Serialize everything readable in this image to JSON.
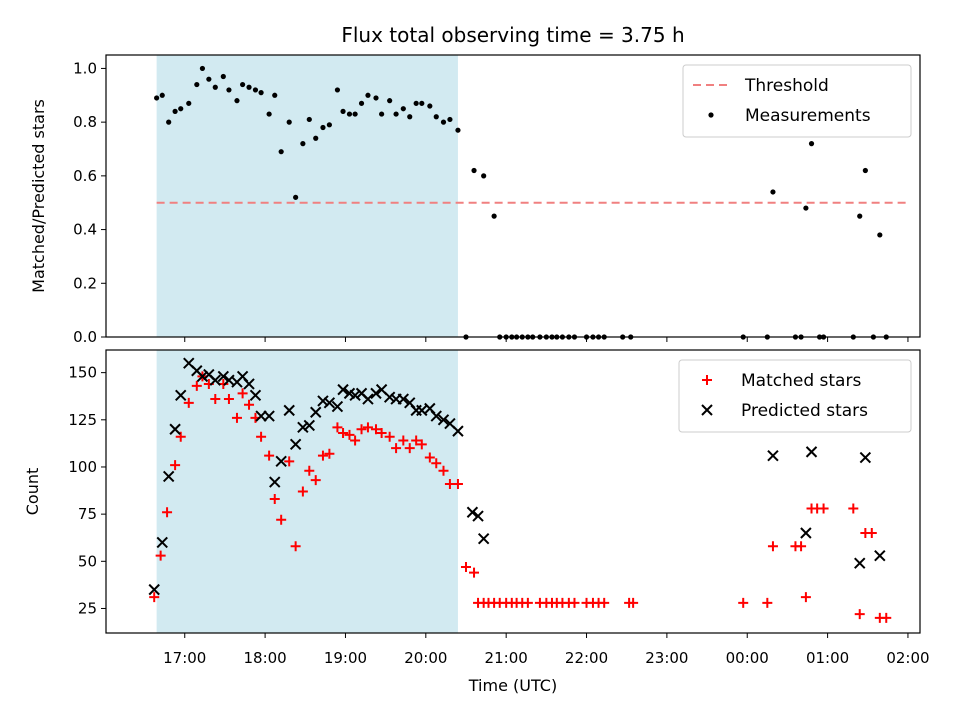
{
  "chart_data": {
    "type": "scatter",
    "title": "Flux total observing time = 3.75 h",
    "xlabel": "Time (UTC)",
    "x_unit": "hours (16 = 16:00 UTC; values above 24 wrap to next day)",
    "x_range": [
      16.02,
      26.15
    ],
    "x_ticks": [
      17,
      18,
      19,
      20,
      21,
      22,
      23,
      24,
      25,
      26
    ],
    "x_tick_labels": [
      "17:00",
      "18:00",
      "19:00",
      "20:00",
      "21:00",
      "22:00",
      "23:00",
      "00:00",
      "01:00",
      "02:00"
    ],
    "observing_span": [
      16.65,
      20.4
    ],
    "shade_color": "#add8e6",
    "panels": [
      {
        "name": "ratio",
        "ylabel": "Matched/Predicted stars",
        "ylim": [
          0,
          1.05
        ],
        "y_ticks": [
          0.0,
          0.2,
          0.4,
          0.6,
          0.8,
          1.0
        ],
        "y_tick_labels": [
          "0.0",
          "0.2",
          "0.4",
          "0.6",
          "0.8",
          "1.0"
        ],
        "threshold": {
          "name": "Threshold",
          "value": 0.5,
          "x_range": [
            16.65,
            26.0
          ],
          "color": "#f08080"
        },
        "legend": {
          "position": "top-right",
          "entries": [
            "Threshold",
            "Measurements"
          ]
        },
        "series": [
          {
            "name": "Measurements",
            "marker": "dot",
            "color": "#000000",
            "x": [
              16.65,
              16.72,
              16.8,
              16.88,
              16.95,
              17.05,
              17.15,
              17.22,
              17.3,
              17.38,
              17.48,
              17.55,
              17.65,
              17.72,
              17.8,
              17.88,
              17.95,
              18.05,
              18.12,
              18.2,
              18.3,
              18.38,
              18.47,
              18.55,
              18.63,
              18.72,
              18.8,
              18.9,
              18.97,
              19.05,
              19.12,
              19.2,
              19.28,
              19.38,
              19.45,
              19.55,
              19.63,
              19.72,
              19.8,
              19.88,
              19.95,
              20.05,
              20.13,
              20.22,
              20.3,
              20.4,
              20.5,
              20.6,
              20.72,
              20.85,
              20.92,
              21.0,
              21.07,
              21.13,
              21.2,
              21.27,
              21.33,
              21.42,
              21.5,
              21.57,
              21.63,
              21.7,
              21.78,
              21.85,
              22.0,
              22.08,
              22.15,
              22.22,
              22.45,
              22.55,
              23.95,
              24.25,
              24.32,
              24.6,
              24.67,
              24.73,
              24.8,
              24.9,
              24.95,
              25.32,
              25.4,
              25.47,
              25.57,
              25.65,
              25.73
            ],
            "y": [
              0.89,
              0.9,
              0.8,
              0.84,
              0.85,
              0.87,
              0.94,
              1.0,
              0.96,
              0.93,
              0.97,
              0.92,
              0.88,
              0.94,
              0.93,
              0.92,
              0.91,
              0.83,
              0.9,
              0.69,
              0.8,
              0.52,
              0.72,
              0.81,
              0.74,
              0.78,
              0.79,
              0.92,
              0.84,
              0.83,
              0.83,
              0.87,
              0.9,
              0.89,
              0.83,
              0.88,
              0.83,
              0.85,
              0.82,
              0.87,
              0.87,
              0.86,
              0.82,
              0.8,
              0.81,
              0.77,
              0.0,
              0.62,
              0.6,
              0.45,
              0.0,
              0.0,
              0.0,
              0.0,
              0.0,
              0.0,
              0.0,
              0.0,
              0.0,
              0.0,
              0.0,
              0.0,
              0.0,
              0.0,
              0.0,
              0.0,
              0.0,
              0.0,
              0.0,
              0.0,
              0.0,
              0.0,
              0.54,
              0.0,
              0.0,
              0.48,
              0.72,
              0.0,
              0.0,
              0.0,
              0.45,
              0.62,
              0.0,
              0.38,
              0.0
            ]
          }
        ]
      },
      {
        "name": "counts",
        "ylabel": "Count",
        "ylim": [
          12,
          162
        ],
        "y_ticks": [
          25,
          50,
          75,
          100,
          125,
          150
        ],
        "y_tick_labels": [
          "25",
          "50",
          "75",
          "100",
          "125",
          "150"
        ],
        "legend": {
          "position": "top-right",
          "entries": [
            "Matched stars",
            "Predicted stars"
          ]
        },
        "series": [
          {
            "name": "Matched stars",
            "marker": "plus",
            "color": "#ff0000",
            "x": [
              16.62,
              16.7,
              16.78,
              16.88,
              16.95,
              17.05,
              17.15,
              17.22,
              17.3,
              17.38,
              17.48,
              17.55,
              17.65,
              17.72,
              17.8,
              17.88,
              17.95,
              18.05,
              18.12,
              18.2,
              18.3,
              18.38,
              18.47,
              18.55,
              18.63,
              18.72,
              18.8,
              18.9,
              18.97,
              19.05,
              19.12,
              19.2,
              19.28,
              19.38,
              19.45,
              19.55,
              19.63,
              19.72,
              19.8,
              19.88,
              19.95,
              20.05,
              20.13,
              20.22,
              20.3,
              20.4,
              20.5,
              20.6,
              20.65,
              20.72,
              20.78,
              20.85,
              20.92,
              21.0,
              21.07,
              21.13,
              21.2,
              21.27,
              21.42,
              21.5,
              21.57,
              21.63,
              21.7,
              21.78,
              21.85,
              22.0,
              22.08,
              22.15,
              22.22,
              22.53,
              22.58,
              23.95,
              24.25,
              24.32,
              24.6,
              24.67,
              24.73,
              24.8,
              24.87,
              24.95,
              25.32,
              25.4,
              25.47,
              25.55,
              25.65,
              25.73
            ],
            "y": [
              31,
              53,
              76,
              101,
              116,
              134,
              143,
              148,
              144,
              136,
              144,
              136,
              126,
              139,
              133,
              126,
              116,
              106,
              83,
              72,
              103,
              58,
              87,
              98,
              93,
              106,
              107,
              121,
              118,
              117,
              114,
              120,
              121,
              120,
              118,
              116,
              110,
              114,
              110,
              114,
              112,
              105,
              102,
              98,
              91,
              91,
              47,
              44,
              28,
              28,
              28,
              28,
              28,
              28,
              28,
              28,
              28,
              28,
              28,
              28,
              28,
              28,
              28,
              28,
              28,
              28,
              28,
              28,
              28,
              28,
              28,
              28,
              28,
              58,
              58,
              58,
              31,
              78,
              78,
              78,
              78,
              22,
              65,
              65,
              20,
              20
            ]
          },
          {
            "name": "Predicted stars",
            "marker": "x",
            "color": "#000000",
            "x": [
              16.62,
              16.72,
              16.8,
              16.88,
              16.95,
              17.05,
              17.15,
              17.22,
              17.3,
              17.38,
              17.48,
              17.55,
              17.65,
              17.72,
              17.8,
              17.88,
              17.95,
              18.05,
              18.12,
              18.2,
              18.3,
              18.38,
              18.47,
              18.55,
              18.63,
              18.72,
              18.8,
              18.9,
              18.97,
              19.05,
              19.12,
              19.2,
              19.28,
              19.38,
              19.45,
              19.55,
              19.63,
              19.72,
              19.8,
              19.88,
              19.95,
              20.05,
              20.13,
              20.22,
              20.3,
              20.4,
              20.58,
              20.65,
              20.72,
              24.32,
              24.73,
              24.8,
              25.4,
              25.47,
              25.65
            ],
            "y": [
              35,
              60,
              95,
              120,
              138,
              155,
              151,
              148,
              149,
              146,
              148,
              146,
              145,
              148,
              144,
              138,
              127,
              127,
              92,
              103,
              130,
              112,
              121,
              122,
              129,
              135,
              134,
              132,
              141,
              139,
              138,
              139,
              136,
              139,
              141,
              137,
              136,
              136,
              134,
              130,
              130,
              131,
              127,
              125,
              123,
              119,
              76,
              74,
              62,
              106,
              65,
              108,
              49,
              105,
              53
            ]
          }
        ]
      }
    ]
  }
}
